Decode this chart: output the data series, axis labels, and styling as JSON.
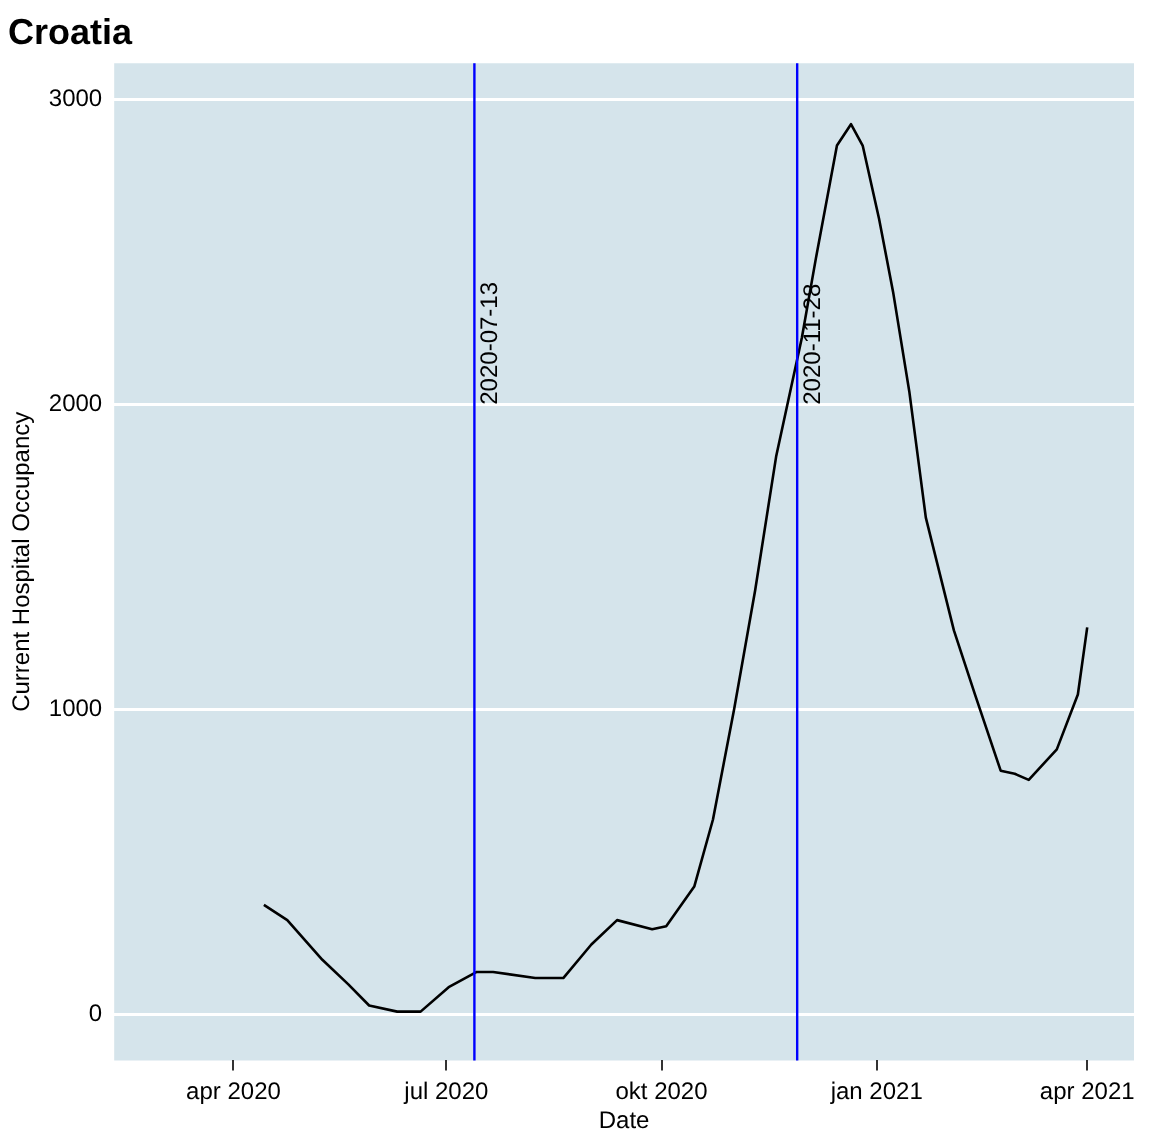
{
  "chart_data": {
    "type": "line",
    "title": "Croatia",
    "xlabel": "Date",
    "ylabel": "Current Hospital Occupancy",
    "x": [
      "2020-04-14",
      "2020-04-24",
      "2020-05-09",
      "2020-05-20",
      "2020-05-29",
      "2020-06-10",
      "2020-06-20",
      "2020-07-02",
      "2020-07-14",
      "2020-07-21",
      "2020-08-08",
      "2020-08-20",
      "2020-09-01",
      "2020-09-12",
      "2020-09-27",
      "2020-10-03",
      "2020-10-15",
      "2020-10-23",
      "2020-11-01",
      "2020-11-10",
      "2020-11-19",
      "2020-11-30",
      "2020-12-06",
      "2020-12-15",
      "2020-12-21",
      "2020-12-26",
      "2021-01-02",
      "2021-01-08",
      "2021-01-15",
      "2021-01-22",
      "2021-02-03",
      "2021-02-12",
      "2021-02-23",
      "2021-03-01",
      "2021-03-07",
      "2021-03-19",
      "2021-03-28",
      "2021-04-01"
    ],
    "series": [
      {
        "color": "#000000",
        "values": [
          360,
          310,
          180,
          100,
          30,
          10,
          10,
          90,
          140,
          140,
          120,
          120,
          230,
          310,
          280,
          290,
          420,
          640,
          1000,
          1390,
          1830,
          2220,
          2480,
          2850,
          2920,
          2850,
          2610,
          2370,
          2040,
          1630,
          1260,
          1050,
          800,
          790,
          770,
          870,
          1050,
          1270
        ]
      }
    ],
    "xlim": [
      "2020-02-10",
      "2021-04-21"
    ],
    "xticks": [
      {
        "value": "2020-04-01",
        "label": "apr 2020"
      },
      {
        "value": "2020-07-01",
        "label": "jul 2020"
      },
      {
        "value": "2020-10-01",
        "label": "okt 2020"
      },
      {
        "value": "2021-01-01",
        "label": "jan 2021"
      },
      {
        "value": "2021-04-01",
        "label": "apr 2021"
      }
    ],
    "ylim": [
      -150,
      3120
    ],
    "yticks": [
      0,
      1000,
      2000,
      3000
    ],
    "grid": "y",
    "legend": false,
    "marker": "none",
    "line_style": "solid",
    "ref_lines": [
      {
        "axis": "x",
        "value": "2020-07-13",
        "label": "2020-07-13",
        "color": "#0000ff"
      },
      {
        "axis": "x",
        "value": "2020-11-28",
        "label": "2020-11-28",
        "color": "#0000ff"
      }
    ]
  }
}
